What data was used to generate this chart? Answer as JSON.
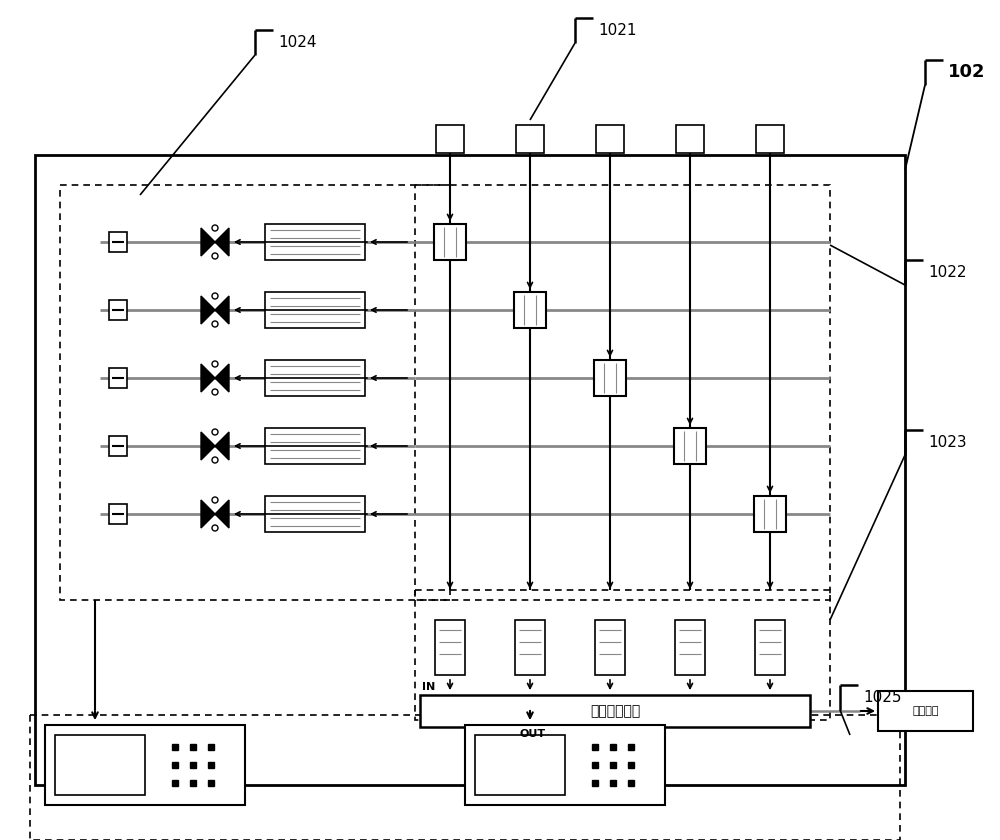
{
  "bg": "#ffffff",
  "dc": "#000000",
  "lc": "#888888",
  "mixing_label": "均匀混合装置",
  "exhaust_label": "余气排放",
  "in_label": "IN",
  "out_label": "OUT",
  "label_102": "102",
  "label_1021": "1021",
  "label_1022": "1022",
  "label_1023": "1023",
  "label_1024": "1024",
  "label_1025": "1025",
  "figw": 10.0,
  "figh": 8.4,
  "dpi": 100
}
